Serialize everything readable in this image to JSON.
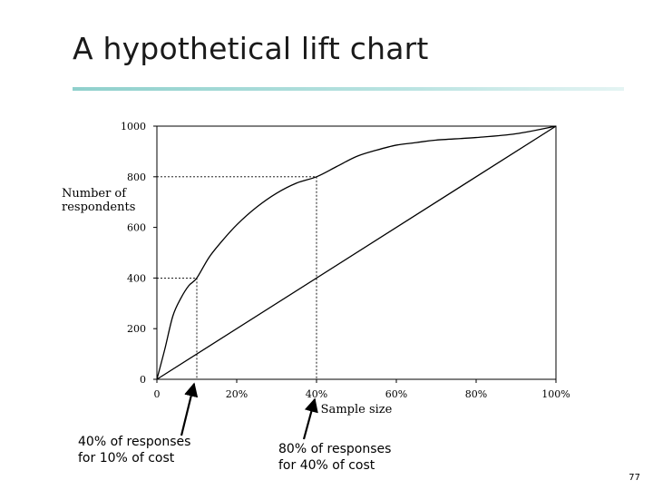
{
  "slide": {
    "title": "A hypothetical lift chart",
    "page_number": "77",
    "accent_color": "#8fd0cc"
  },
  "annotations": {
    "left": {
      "line1": "40% of responses",
      "line2": "for 10% of cost"
    },
    "right": {
      "line1": "80% of responses",
      "line2": "for 40% of cost"
    }
  },
  "chart_data": {
    "type": "line",
    "title": "",
    "xlabel": "Sample size",
    "ylabel_lines": [
      "Number of",
      "respondents"
    ],
    "xlim": [
      0,
      100
    ],
    "ylim": [
      0,
      1000
    ],
    "x_ticks": [
      0,
      20,
      40,
      60,
      80,
      100
    ],
    "x_tick_labels": [
      "0",
      "20%",
      "40%",
      "60%",
      "80%",
      "100%"
    ],
    "y_ticks": [
      0,
      200,
      400,
      600,
      800,
      1000
    ],
    "y_tick_labels": [
      "0",
      "200",
      "400",
      "600",
      "800",
      "1000"
    ],
    "grid": false,
    "series": [
      {
        "key": "lift",
        "x": [
          0,
          2,
          4,
          6,
          8,
          10,
          13,
          16,
          20,
          25,
          30,
          35,
          40,
          45,
          50,
          55,
          60,
          65,
          70,
          80,
          90,
          100
        ],
        "y": [
          0,
          120,
          250,
          320,
          370,
          400,
          480,
          540,
          610,
          680,
          735,
          775,
          800,
          840,
          880,
          905,
          925,
          935,
          945,
          955,
          970,
          1000
        ],
        "color": "#000000"
      },
      {
        "key": "baseline",
        "x": [
          0,
          100
        ],
        "y": [
          0,
          1000
        ],
        "color": "#000000"
      }
    ],
    "reference_points": [
      {
        "x": 10,
        "y": 400
      },
      {
        "x": 40,
        "y": 800
      }
    ]
  }
}
